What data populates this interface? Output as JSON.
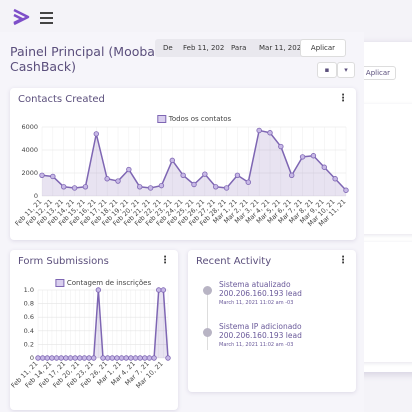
{
  "header": {
    "title": "Painel Principal (Mooba CashBack)"
  },
  "filter": {
    "from_label": "De",
    "from_value": "Feb 11, 202",
    "to_label": "Para",
    "to_value": "Mar 11, 202",
    "apply": "Aplicar"
  },
  "chart_data": [
    {
      "type": "line",
      "title": "Contacts Created",
      "categories": [
        "Feb 11, 21",
        "Feb 12, 21",
        "Feb 13, 21",
        "Feb 14, 21",
        "Feb 15, 21",
        "Feb 16, 21",
        "Feb 17, 21",
        "Feb 18, 21",
        "Feb 19, 21",
        "Feb 20, 21",
        "Feb 21, 21",
        "Feb 22, 21",
        "Feb 23, 21",
        "Feb 24, 21",
        "Feb 25, 21",
        "Feb 26, 21",
        "Feb 27, 21",
        "Feb 28, 21",
        "Mar 1, 21",
        "Mar 2, 21",
        "Mar 3, 21",
        "Mar 4, 21",
        "Mar 5, 21",
        "Mar 6, 21",
        "Mar 7, 21",
        "Mar 8, 21",
        "Mar 9, 21",
        "Mar 10, 21",
        "Mar 11, 21"
      ],
      "series": [
        {
          "name": "Todos os contatos",
          "color": "#7e66b3",
          "values": [
            1800,
            1700,
            800,
            700,
            800,
            5400,
            1500,
            1300,
            2300,
            800,
            700,
            900,
            3100,
            1800,
            1000,
            1900,
            800,
            700,
            1800,
            1200,
            5700,
            5500,
            4300,
            1800,
            3400,
            3500,
            2500,
            1500,
            500
          ]
        }
      ],
      "ylim": [
        0,
        6000
      ],
      "yticks": [
        0,
        2000,
        4000,
        6000
      ],
      "grid": true
    },
    {
      "type": "line",
      "title": "Form Submissions",
      "categories": [
        "Feb 11, 21",
        null,
        null,
        "Feb 14, 21",
        null,
        null,
        "Feb 17, 21",
        null,
        null,
        "Feb 20, 21",
        null,
        null,
        "Feb 23, 21",
        null,
        null,
        "Feb 26, 21",
        null,
        null,
        "Mar 1, 21",
        null,
        null,
        "Mar 4, 21",
        null,
        null,
        "Mar 7, 21",
        null,
        null,
        "Mar 10, 21",
        null
      ],
      "series": [
        {
          "name": "Contagem de inscrições",
          "color": "#7e66b3",
          "values": [
            0,
            0,
            0,
            0,
            0,
            0,
            0,
            0,
            0,
            0,
            0,
            0,
            0,
            1,
            0,
            0,
            0,
            0,
            0,
            0,
            0,
            0,
            0,
            0,
            0,
            0,
            1,
            1,
            0
          ]
        }
      ],
      "ylim": [
        0,
        1
      ],
      "yticks": [
        0,
        0.2,
        0.4,
        0.6,
        0.8,
        {
          "value": 1,
          "label": "1.0"
        }
      ],
      "grid": true
    }
  ],
  "activity": {
    "title": "Recent Activity",
    "items": [
      {
        "text": "Sistema atualizado 200.206.160.193 lead",
        "time": "March 11, 2021 11:02 am -03"
      },
      {
        "text": "Sistema IP adicionado 200.206.160.193 lead",
        "time": "March 11, 2021 11:02 am -03"
      }
    ]
  }
}
